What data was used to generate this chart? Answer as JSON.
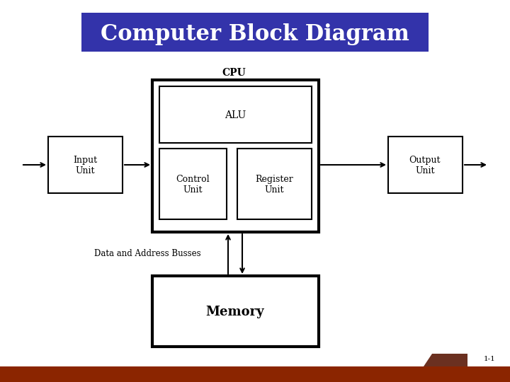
{
  "title": "Computer Block Diagram",
  "title_bg": "#3333AA",
  "title_fg": "#FFFFFF",
  "title_fontsize": 22,
  "bg_color": "#FFFFFF",
  "cpu_label": "CPU",
  "alu_label": "ALU",
  "control_label": "Control\nUnit",
  "register_label": "Register\nUnit",
  "input_label": "Input\nUnit",
  "output_label": "Output\nUnit",
  "memory_label": "Memory",
  "bus_label": "Data and Address Busses",
  "slide_num": "1-1",
  "bottom_bar_color": "#8B2500",
  "bottom_chevron_color": "#6B3020"
}
